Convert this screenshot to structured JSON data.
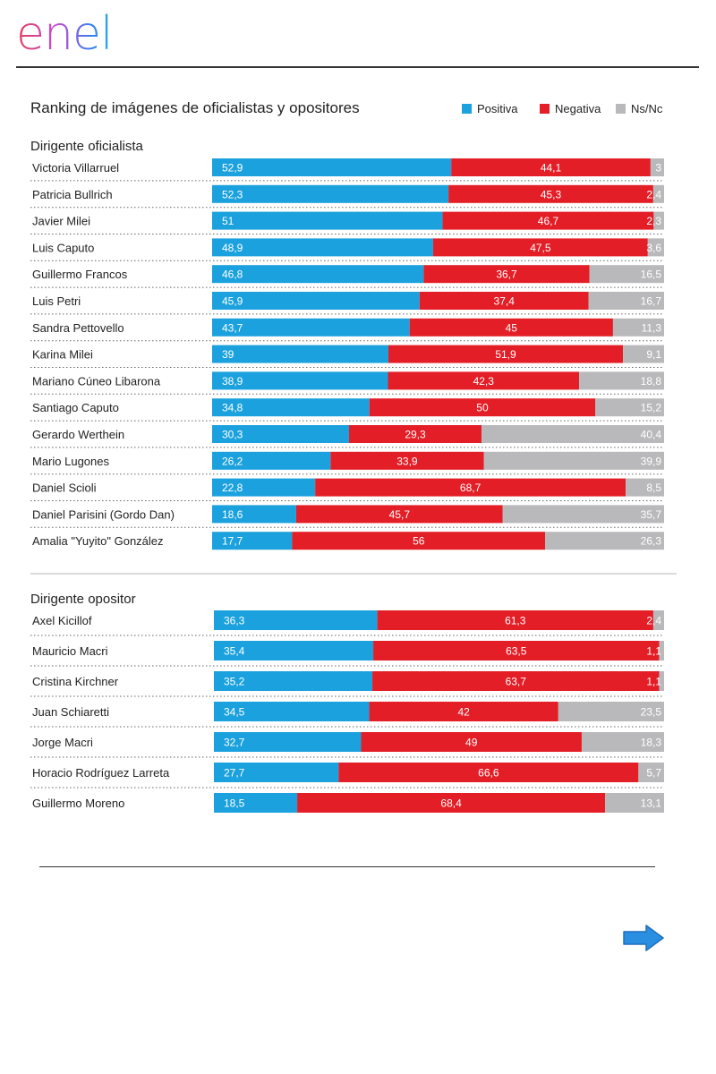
{
  "brand": {
    "name": "enel"
  },
  "navigation": {
    "next_icon": "right-arrow-icon"
  },
  "chart_data": {
    "type": "bar",
    "stacked": true,
    "orientation": "horizontal",
    "title": "Ranking de imágenes de oficialistas y opositores",
    "legend": [
      {
        "name": "Positiva",
        "color": "#1ba1dd"
      },
      {
        "name": "Negativa",
        "color": "#e31e27"
      },
      {
        "name": "Ns/Nc",
        "color": "#b9b9bb"
      }
    ],
    "legend_position": "top-right",
    "groups": [
      {
        "title": "Dirigente oficialista",
        "rows": [
          {
            "name": "Victoria Villarruel",
            "values": [
              "52,9",
              "44,1",
              "3"
            ]
          },
          {
            "name": "Patricia Bullrich",
            "values": [
              "52,3",
              "45,3",
              "2,4"
            ]
          },
          {
            "name": "Javier Milei",
            "values": [
              "51",
              "46,7",
              "2,3"
            ]
          },
          {
            "name": "Luis Caputo",
            "values": [
              "48,9",
              "47,5",
              "3,6"
            ]
          },
          {
            "name": "Guillermo Francos",
            "values": [
              "46,8",
              "36,7",
              "16,5"
            ]
          },
          {
            "name": "Luis Petri",
            "values": [
              "45,9",
              "37,4",
              "16,7"
            ]
          },
          {
            "name": "Sandra Pettovello",
            "values": [
              "43,7",
              "45",
              "11,3"
            ]
          },
          {
            "name": "Karina Milei",
            "values": [
              "39",
              "51,9",
              "9,1"
            ]
          },
          {
            "name": "Mariano Cúneo Libarona",
            "values": [
              "38,9",
              "42,3",
              "18,8"
            ]
          },
          {
            "name": "Santiago Caputo",
            "values": [
              "34,8",
              "50",
              "15,2"
            ]
          },
          {
            "name": "Gerardo Werthein",
            "values": [
              "30,3",
              "29,3",
              "40,4"
            ]
          },
          {
            "name": "Mario Lugones",
            "values": [
              "26,2",
              "33,9",
              "39,9"
            ]
          },
          {
            "name": "Daniel Scioli",
            "values": [
              "22,8",
              "68,7",
              "8,5"
            ]
          },
          {
            "name": "Daniel Parisini (Gordo Dan)",
            "values": [
              "18,6",
              "45,7",
              "35,7"
            ]
          },
          {
            "name": "Amalia \"Yuyito\" González",
            "values": [
              "17,7",
              "56",
              "26,3"
            ]
          }
        ]
      },
      {
        "title": "Dirigente opositor",
        "rows": [
          {
            "name": "Axel Kicillof",
            "values": [
              "36,3",
              "61,3",
              "2,4"
            ]
          },
          {
            "name": "Mauricio Macri",
            "values": [
              "35,4",
              "63,5",
              "1,1"
            ]
          },
          {
            "name": "Cristina Kirchner",
            "values": [
              "35,2",
              "63,7",
              "1,1"
            ]
          },
          {
            "name": "Juan Schiaretti",
            "values": [
              "34,5",
              "42",
              "23,5"
            ]
          },
          {
            "name": "Jorge Macri",
            "values": [
              "32,7",
              "49",
              "18,3"
            ]
          },
          {
            "name": "Horacio Rodríguez Larreta",
            "values": [
              "27,7",
              "66,6",
              "5,7"
            ]
          },
          {
            "name": "Guillermo Moreno",
            "values": [
              "18,5",
              "68,4",
              "13,1"
            ]
          }
        ]
      }
    ]
  }
}
